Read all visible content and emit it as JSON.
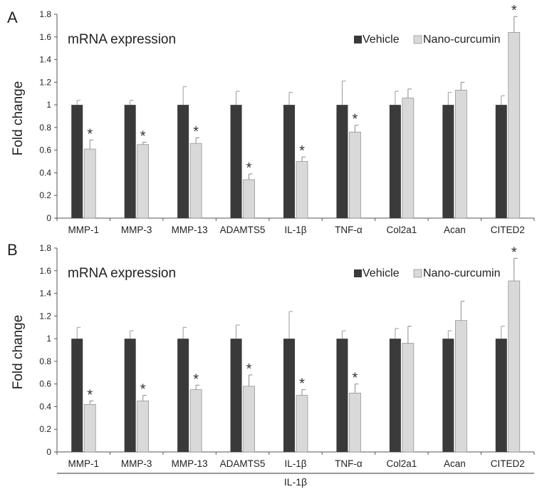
{
  "colors": {
    "vehicle": "#3a3a3a",
    "nano": "#d9d9d9",
    "axis": "#555555",
    "text": "#222222"
  },
  "group_label": "IL-1β",
  "chart_data": [
    {
      "type": "bar",
      "panel_label": "A",
      "title": "mRNA expression",
      "ylabel": "Fold change",
      "xlabel": "",
      "ylim": [
        0,
        1.8
      ],
      "yticks": [
        "0",
        "0.2",
        "0.4",
        "0.6",
        "0.8",
        "1",
        "1.2",
        "1.4",
        "1.6",
        "1.8"
      ],
      "grid": false,
      "legend_position": "top-right",
      "categories": [
        "MMP-1",
        "MMP-3",
        "MMP-13",
        "ADAMTS5",
        "IL-1β",
        "TNF-α",
        "Col2a1",
        "Acan",
        "CITED2"
      ],
      "series": [
        {
          "name": "Vehicle",
          "values": [
            1.0,
            1.0,
            1.0,
            1.0,
            1.0,
            1.0,
            1.0,
            1.0,
            1.0
          ],
          "errors": [
            0.04,
            0.04,
            0.16,
            0.12,
            0.11,
            0.21,
            0.12,
            0.11,
            0.08
          ]
        },
        {
          "name": "Nano-curcumin",
          "values": [
            0.61,
            0.65,
            0.66,
            0.34,
            0.5,
            0.76,
            1.06,
            1.13,
            1.64
          ],
          "errors": [
            0.08,
            0.02,
            0.05,
            0.05,
            0.04,
            0.06,
            0.08,
            0.07,
            0.14
          ]
        }
      ],
      "significant": [
        true,
        true,
        true,
        true,
        true,
        true,
        false,
        false,
        true
      ],
      "annotation_marker": "*"
    },
    {
      "type": "bar",
      "panel_label": "B",
      "title": "mRNA expression",
      "ylabel": "Fold change",
      "xlabel": "",
      "ylim": [
        0,
        1.8
      ],
      "yticks": [
        "0",
        "0.2",
        "0.4",
        "0.6",
        "0.8",
        "1",
        "1.2",
        "1.4",
        "1.6",
        "1.8"
      ],
      "grid": false,
      "legend_position": "top-right",
      "categories": [
        "MMP-1",
        "MMP-3",
        "MMP-13",
        "ADAMTS5",
        "IL-1β",
        "TNF-α",
        "Col2a1",
        "Acan",
        "CITED2"
      ],
      "series": [
        {
          "name": "Vehicle",
          "values": [
            1.0,
            1.0,
            1.0,
            1.0,
            1.0,
            1.0,
            1.0,
            1.0,
            1.0
          ],
          "errors": [
            0.1,
            0.07,
            0.1,
            0.12,
            0.24,
            0.07,
            0.09,
            0.07,
            0.11
          ]
        },
        {
          "name": "Nano-curcumin",
          "values": [
            0.42,
            0.45,
            0.55,
            0.58,
            0.5,
            0.52,
            0.96,
            1.16,
            1.51
          ],
          "errors": [
            0.03,
            0.05,
            0.04,
            0.1,
            0.05,
            0.08,
            0.15,
            0.17,
            0.2
          ]
        }
      ],
      "significant": [
        true,
        true,
        true,
        true,
        true,
        true,
        false,
        false,
        true
      ],
      "annotation_marker": "*"
    }
  ]
}
